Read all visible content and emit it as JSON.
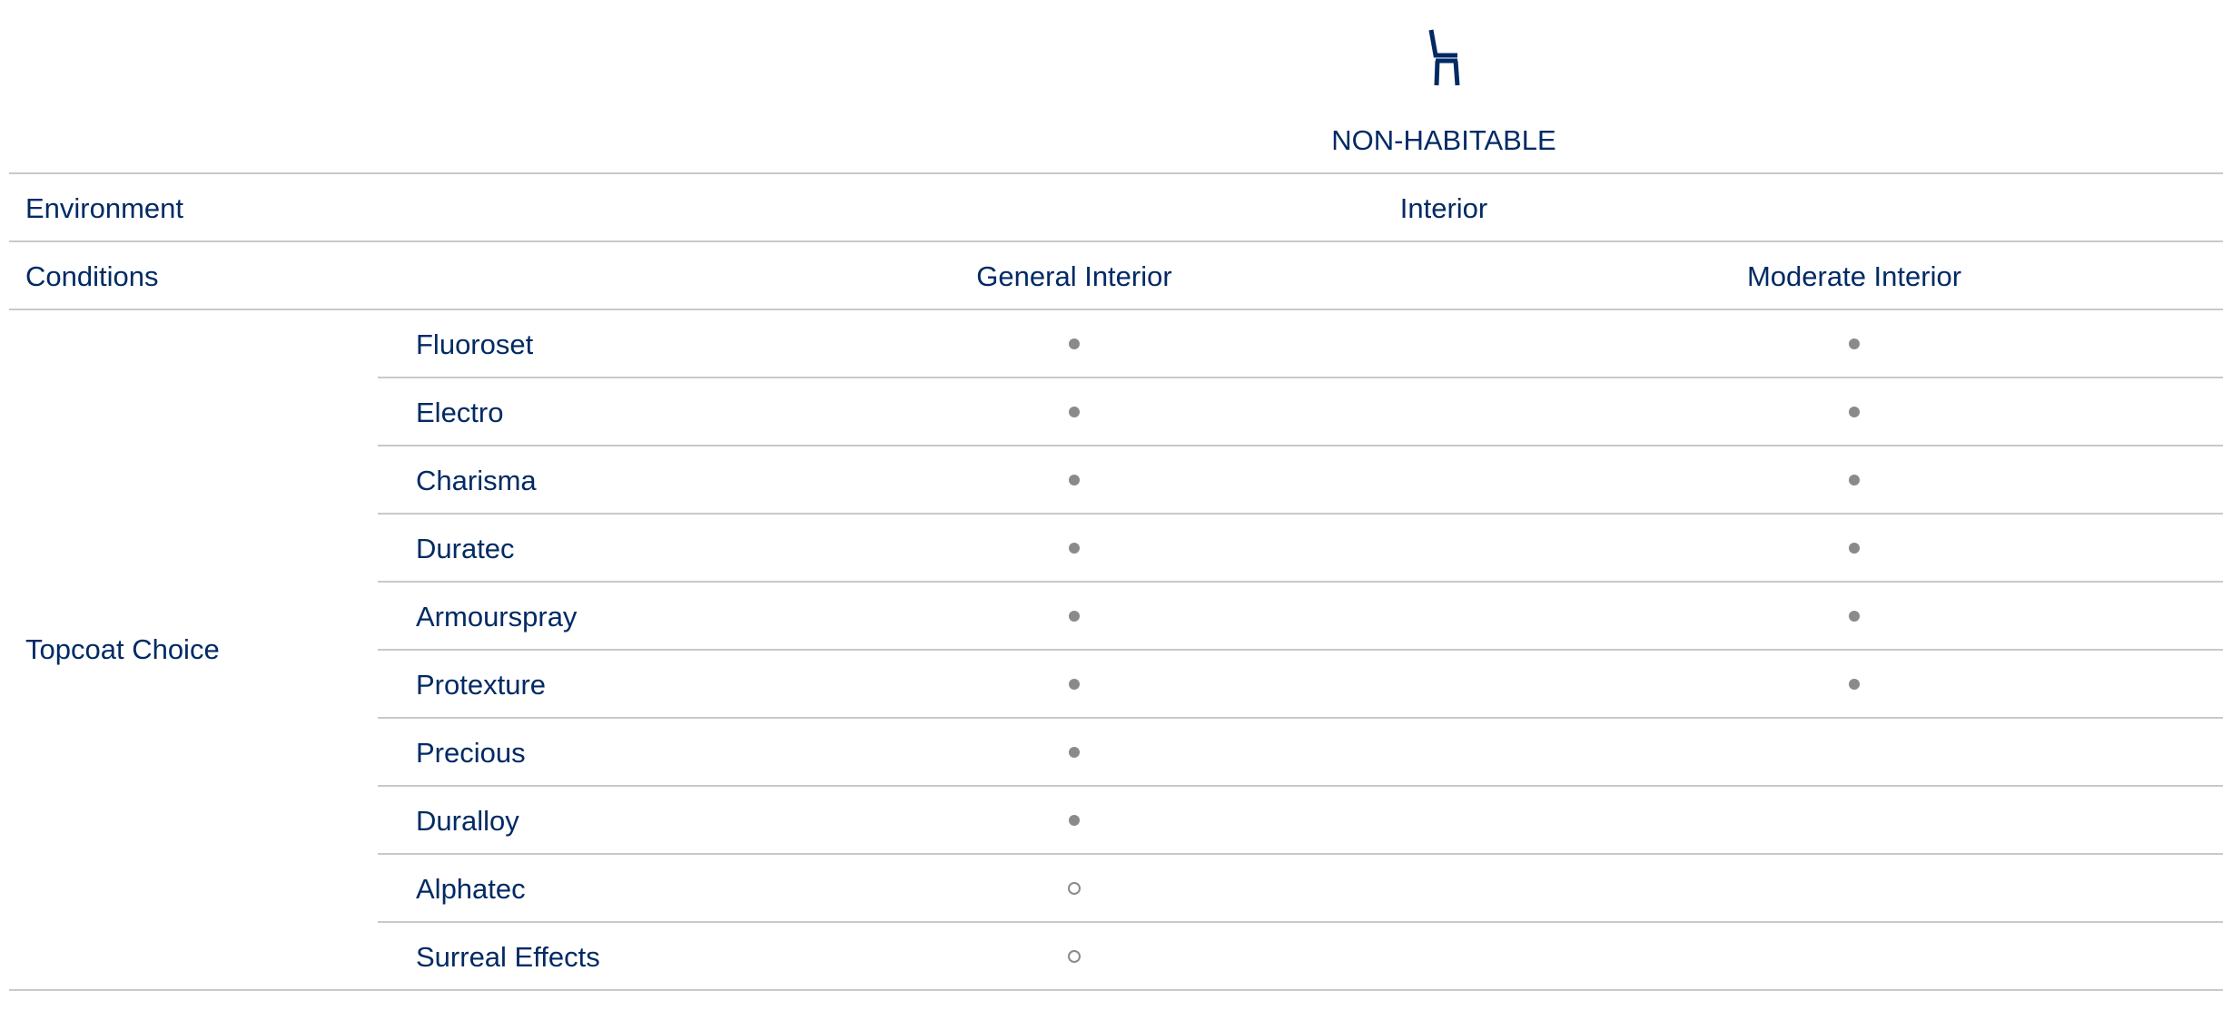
{
  "header": {
    "icon": "chair-icon",
    "title": "NON-HABITABLE"
  },
  "environment": {
    "label": "Environment",
    "value": "Interior"
  },
  "conditions": {
    "label": "Conditions",
    "columns": [
      "General Interior",
      "Moderate Interior"
    ]
  },
  "topcoat": {
    "label": "Topcoat Choice",
    "legend_symbols": {
      "filled": "filled-dot",
      "open": "open-circle"
    },
    "rows": [
      {
        "name": "Fluoroset",
        "general": "filled",
        "moderate": "filled"
      },
      {
        "name": "Electro",
        "general": "filled",
        "moderate": "filled"
      },
      {
        "name": "Charisma",
        "general": "filled",
        "moderate": "filled"
      },
      {
        "name": "Duratec",
        "general": "filled",
        "moderate": "filled"
      },
      {
        "name": "Armourspray",
        "general": "filled",
        "moderate": "filled"
      },
      {
        "name": "Protexture",
        "general": "filled",
        "moderate": "filled"
      },
      {
        "name": "Precious",
        "general": "filled",
        "moderate": ""
      },
      {
        "name": "Duralloy",
        "general": "filled",
        "moderate": ""
      },
      {
        "name": "Alphatec",
        "general": "open",
        "moderate": ""
      },
      {
        "name": "Surreal Effects",
        "general": "open",
        "moderate": ""
      }
    ]
  },
  "colors": {
    "text": "#002a64",
    "divider": "#c9c9c9",
    "dot": "#8a8a8a"
  }
}
